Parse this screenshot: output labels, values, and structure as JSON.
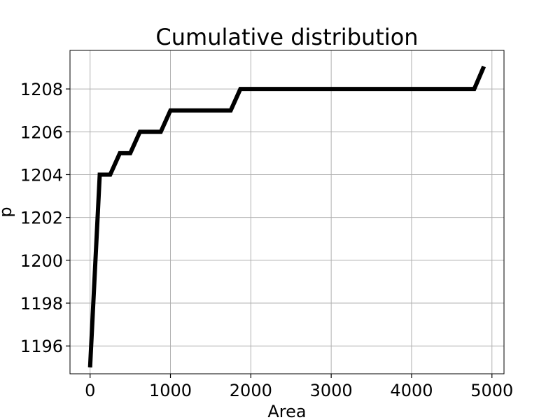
{
  "chart_data": {
    "type": "line",
    "title": "Cumulative distribution",
    "xlabel": "Area",
    "ylabel": "p",
    "xlim": [
      -250,
      5150
    ],
    "ylim": [
      1194.7,
      1209.8
    ],
    "xticks": [
      0,
      1000,
      2000,
      3000,
      4000,
      5000
    ],
    "xtick_labels": [
      "0",
      "1000",
      "2000",
      "3000",
      "4000",
      "5000"
    ],
    "yticks": [
      1196,
      1198,
      1200,
      1202,
      1204,
      1206,
      1208
    ],
    "ytick_labels": [
      "1196",
      "1198",
      "1200",
      "1202",
      "1204",
      "1206",
      "1208"
    ],
    "grid": true,
    "series": [
      {
        "color": "#000000",
        "x": [
          0,
          120,
          250,
          370,
          500,
          620,
          880,
          1000,
          1750,
          1870,
          4780,
          4900
        ],
        "y": [
          1195,
          1204,
          1204,
          1205,
          1205,
          1206,
          1206,
          1207,
          1207,
          1208,
          1208,
          1209.05
        ]
      }
    ]
  }
}
